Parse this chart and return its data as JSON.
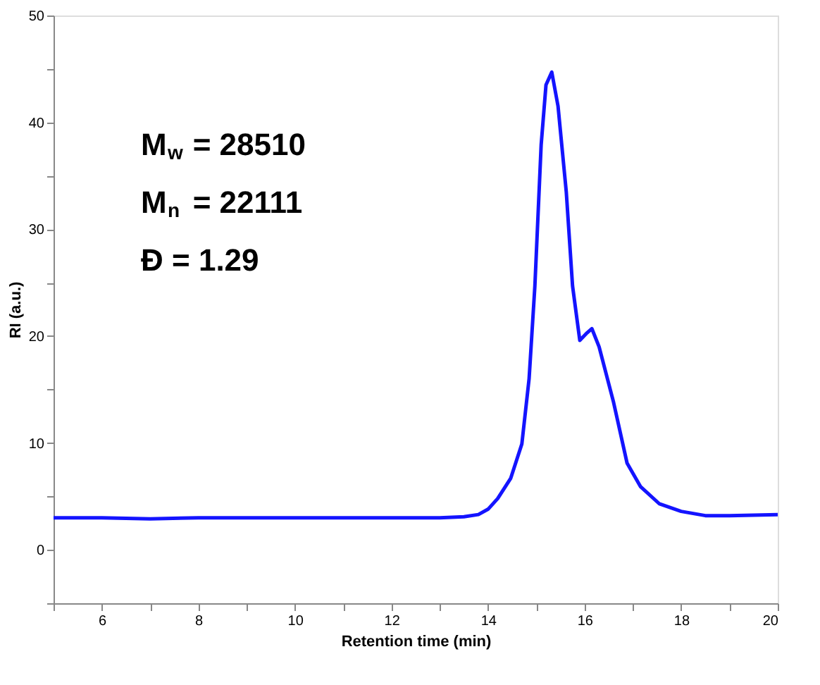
{
  "chart_data": {
    "type": "line",
    "xlabel": "Retention time (min)",
    "ylabel": "RI (a.u.)",
    "x": [
      5,
      6,
      7,
      8,
      9,
      10,
      11,
      12,
      13,
      13.5,
      13.8,
      14.0,
      14.2,
      14.47,
      14.7,
      14.85,
      14.97,
      15.1,
      15.2,
      15.32,
      15.45,
      15.62,
      15.75,
      15.9,
      16.05,
      16.15,
      16.3,
      16.6,
      16.88,
      17.16,
      17.55,
      18.0,
      18.5,
      19.0,
      20
    ],
    "series": [
      {
        "color": "#1414ff",
        "values": [
          3.0,
          3.0,
          2.9,
          3.0,
          3.0,
          3.0,
          3.0,
          3.0,
          3.0,
          3.1,
          3.3,
          3.8,
          4.8,
          6.7,
          9.9,
          16.0,
          24.7,
          37.9,
          43.5,
          44.7,
          41.5,
          33.5,
          24.7,
          19.6,
          20.3,
          20.7,
          19.0,
          13.8,
          8.1,
          5.9,
          4.3,
          3.6,
          3.2,
          3.2,
          3.3
        ]
      }
    ],
    "xlim": [
      5,
      20
    ],
    "ylim": [
      -5,
      50
    ],
    "xticks": [
      {
        "value": 5,
        "label": null
      },
      6,
      {
        "value": 7,
        "label": null
      },
      8,
      {
        "value": 9,
        "label": null
      },
      10,
      {
        "value": 11,
        "label": null
      },
      12,
      {
        "value": 13,
        "label": null
      },
      14,
      {
        "value": 15,
        "label": null
      },
      16,
      {
        "value": 17,
        "label": null
      },
      18,
      {
        "value": 19,
        "label": null
      },
      20
    ],
    "yticks": [
      {
        "value": -5,
        "label": null
      },
      0,
      {
        "value": 5,
        "label": null
      },
      10,
      {
        "value": 15,
        "label": null
      },
      20,
      {
        "value": 25,
        "label": null
      },
      30,
      {
        "value": 35,
        "label": null
      },
      40,
      {
        "value": 45,
        "label": null
      },
      50
    ],
    "annotations": [
      "M$_{w}$ = 28510",
      "M$_{n}$ = 22111",
      "Đ =  1.29"
    ],
    "grid": false,
    "line_style": "solid",
    "marker": "none"
  }
}
